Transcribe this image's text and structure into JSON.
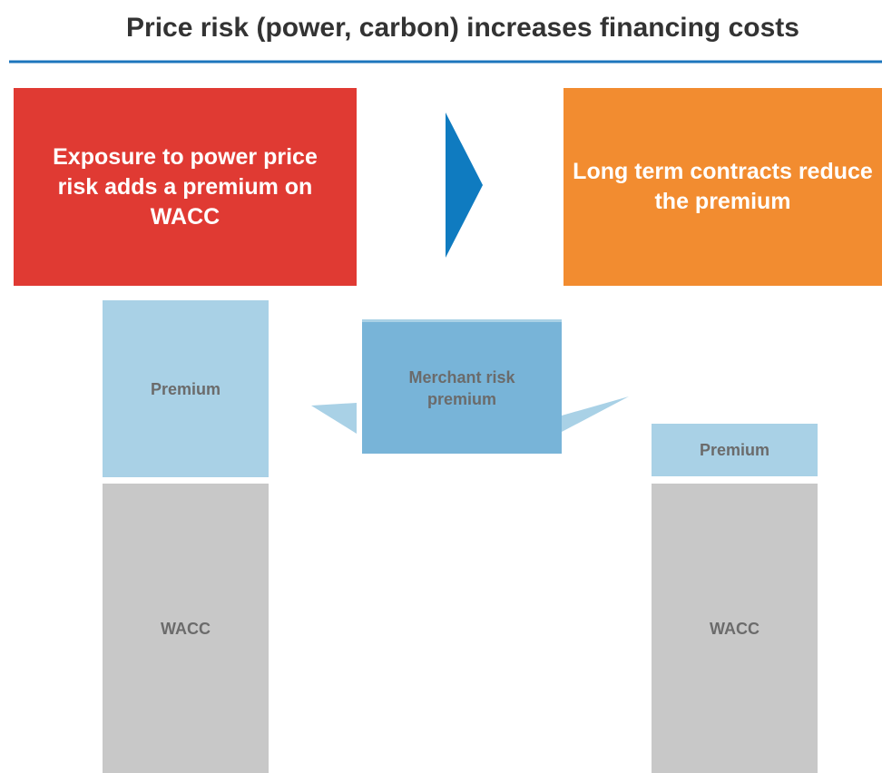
{
  "title": "Price risk (power, carbon) increases financing costs",
  "left_box": {
    "text": "Exposure to power price risk adds a premium on WACC"
  },
  "right_box": {
    "text": "Long term contracts reduce the premium"
  },
  "left_bar": {
    "premium": "Premium",
    "base": "WACC"
  },
  "callout": {
    "text": "Merchant risk premium"
  },
  "right_bar": {
    "premium": "Premium",
    "base": "WACC"
  }
}
